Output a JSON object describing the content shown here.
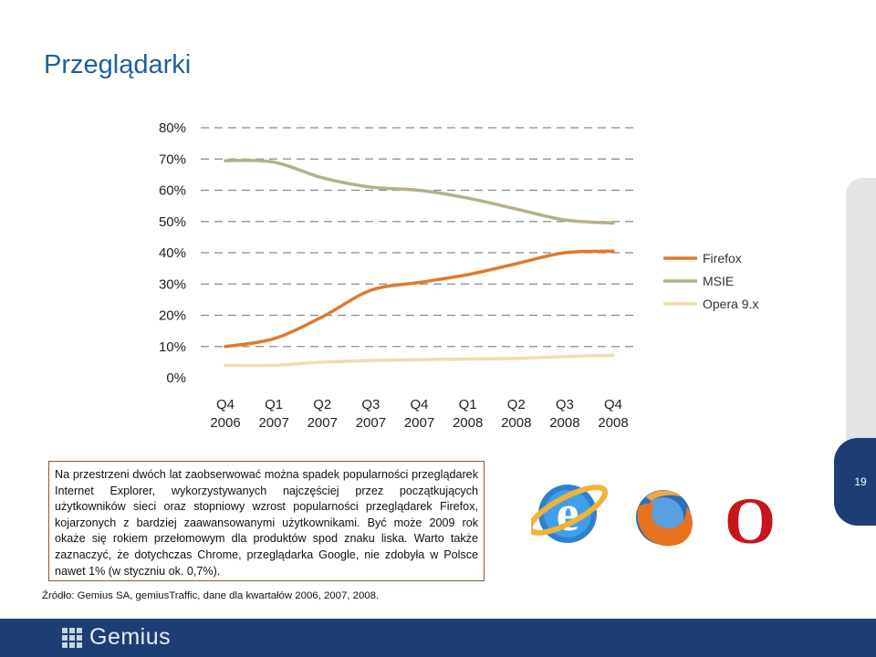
{
  "slide": {
    "title": "Przeglądarki",
    "page_number": "19",
    "note": "Na przestrzeni dwóch lat zaobserwować można spadek popularności przeglądarek Internet Explorer, wykorzystywanych najczęściej przez początkujących użytkowników sieci oraz stopniowy wzrost popularności przeglądarek Firefox, kojarzonych z bardziej zaawansowanymi użytkownikami. Być może 2009 rok okaże się rokiem przełomowym dla produktów spod znaku liska. Warto także zaznaczyć, że dotychczas Chrome, przeglądarka Google, nie zdobyła w Polsce nawet 1% (w styczniu ok. 0,7%).",
    "source": "Źródło: Gemius SA, gemiusTraffic, dane dla kwartałów 2006, 2007, 2008.",
    "footer_brand": "Gemius",
    "logos": [
      {
        "icon": "internet-explorer-logo"
      },
      {
        "icon": "firefox-logo"
      },
      {
        "icon": "opera-logo"
      }
    ]
  },
  "chart_data": {
    "type": "line",
    "title": "",
    "xlabel": "",
    "ylabel": "",
    "categories": [
      [
        "Q4",
        "2006"
      ],
      [
        "Q1",
        "2007"
      ],
      [
        "Q2",
        "2007"
      ],
      [
        "Q3",
        "2007"
      ],
      [
        "Q4",
        "2007"
      ],
      [
        "Q1",
        "2008"
      ],
      [
        "Q2",
        "2008"
      ],
      [
        "Q3",
        "2008"
      ],
      [
        "Q4",
        "2008"
      ]
    ],
    "y_ticks": [
      "0%",
      "10%",
      "20%",
      "30%",
      "40%",
      "50%",
      "60%",
      "70%",
      "80%"
    ],
    "ylim": [
      0,
      80
    ],
    "grid": "horizontal dashed",
    "legend_position": "right",
    "series": [
      {
        "name": "Firefox",
        "color": "#e07a2c",
        "values": [
          10,
          12.5,
          19.5,
          28,
          30.5,
          33,
          36.5,
          40,
          40.5
        ]
      },
      {
        "name": "MSIE",
        "color": "#b5b08a",
        "values": [
          69.5,
          69,
          64,
          61,
          60,
          57.5,
          54,
          50.5,
          49.5
        ]
      },
      {
        "name": "Opera 9.x",
        "color": "#f1dca8",
        "values": [
          4,
          4,
          5,
          5.5,
          5.8,
          6,
          6.2,
          6.8,
          7.2
        ]
      }
    ]
  }
}
